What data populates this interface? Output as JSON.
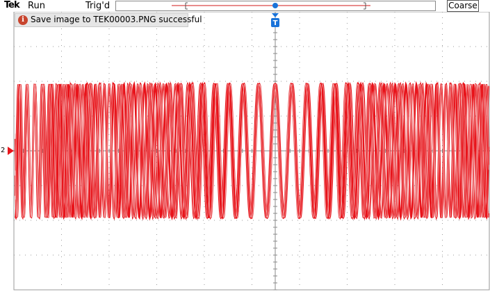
{
  "status_bar": {
    "brand": "Tek",
    "acquisition_state": "Run",
    "trigger_state": "Trig'd",
    "zoom_mode_button": "Coarse"
  },
  "notification": {
    "icon": "info-icon",
    "icon_glyph": "i",
    "message": "Save image to TEK00003.PNG successful"
  },
  "trigger_marker": {
    "label": "T"
  },
  "channel": {
    "label": "2",
    "color": "#e8141b"
  },
  "waveform": {
    "description_color": "#e8141b",
    "trace_color_secondary": "#f2b0b0"
  },
  "colors": {
    "trigger_blue": "#1a73d9",
    "channel_red": "#e8141b",
    "grid": "#9a9a9a"
  }
}
